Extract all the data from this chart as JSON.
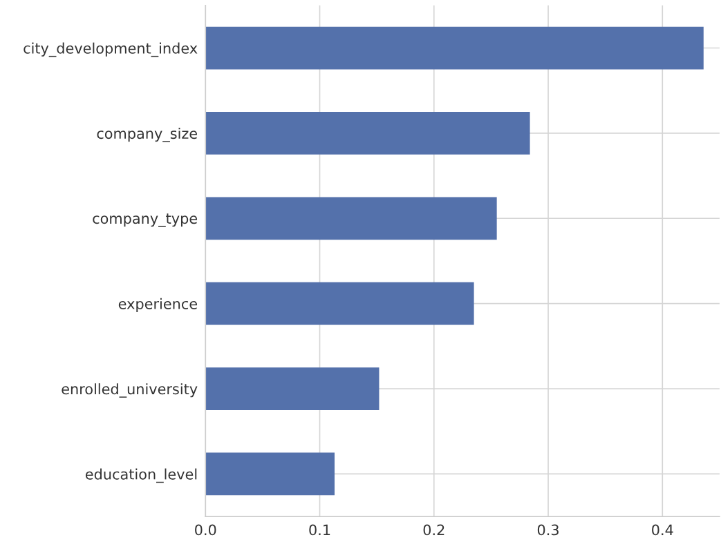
{
  "chart_data": {
    "type": "bar",
    "orientation": "horizontal",
    "categories": [
      "city_development_index",
      "company_size",
      "company_type",
      "experience",
      "enrolled_university",
      "education_level"
    ],
    "values": [
      0.436,
      0.284,
      0.255,
      0.235,
      0.152,
      0.113
    ],
    "color": "#5471ab",
    "xlim": [
      0,
      0.45
    ],
    "xticks": [
      {
        "value": 0,
        "label": "0.0"
      },
      0.1,
      0.2,
      0.3,
      0.4
    ],
    "grid": true
  }
}
